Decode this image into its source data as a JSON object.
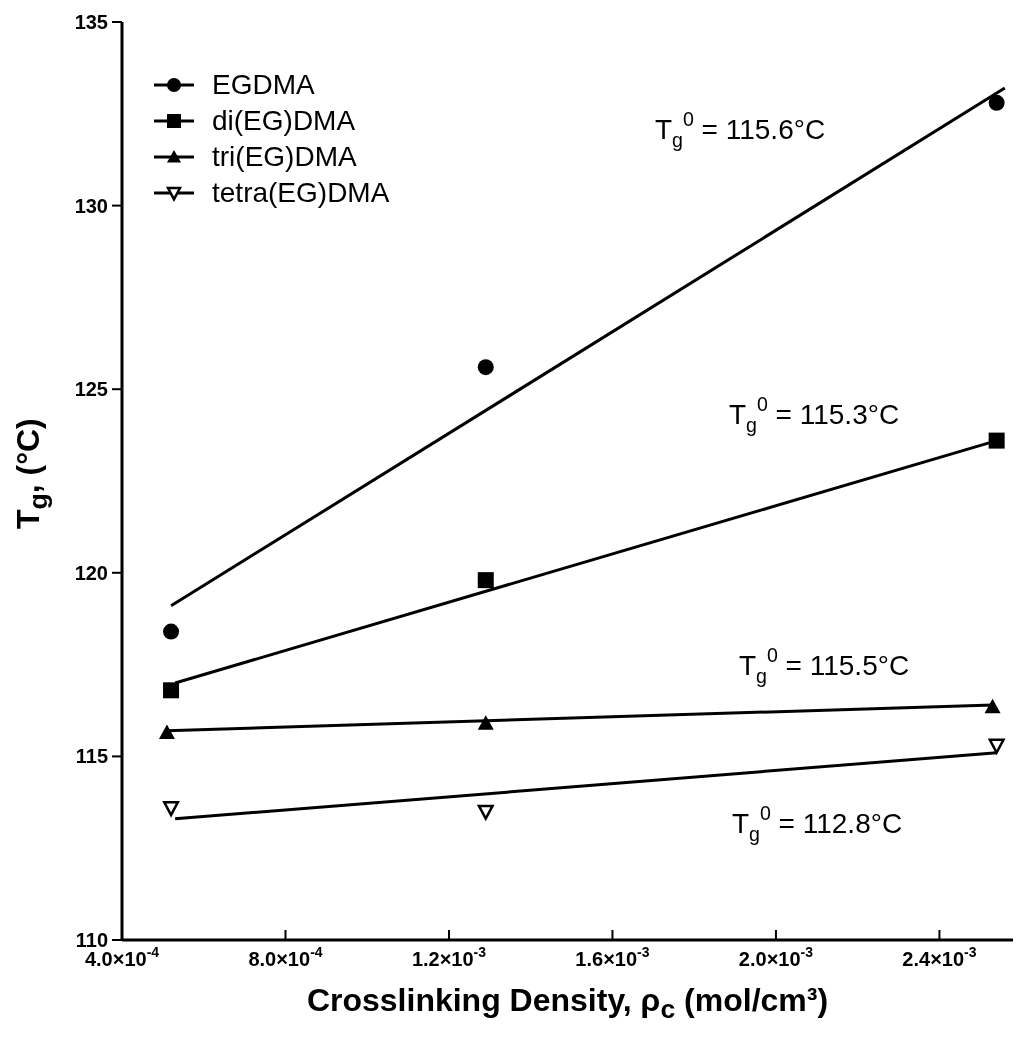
{
  "chart_data": {
    "type": "scatter",
    "xlabel": "Crosslinking Density, ρ$_{c}$ (mol/cm³)",
    "ylabel": "T$_{g}$, (°C)",
    "xlim": [
      0.0004,
      0.00258
    ],
    "ylim": [
      110,
      135
    ],
    "xticks": [
      {
        "value": 0.0004,
        "label": "4.0×10$^{-4}$"
      },
      {
        "value": 0.0008,
        "label": "8.0×10$^{-4}$"
      },
      {
        "value": 0.0012,
        "label": "1.2×10$^{-3}$"
      },
      {
        "value": 0.0016,
        "label": "1.6×10$^{-3}$"
      },
      {
        "value": 0.002,
        "label": "2.0×10$^{-3}$"
      },
      {
        "value": 0.0024,
        "label": "2.4×10$^{-3}$"
      }
    ],
    "yticks": [
      110,
      115,
      120,
      125,
      130,
      135
    ],
    "grid": false,
    "legend": "top left",
    "series": [
      {
        "name": "EGDMA",
        "marker": "circle",
        "color": "#000000",
        "x": [
          0.00052,
          0.00129,
          0.00254
        ],
        "values": [
          118.4,
          125.6,
          132.8
        ]
      },
      {
        "name": "di(EG)DMA",
        "marker": "square",
        "color": "#000000",
        "x": [
          0.00052,
          0.00129,
          0.00254
        ],
        "values": [
          116.8,
          119.8,
          123.6
        ]
      },
      {
        "name": "tri(EG)DMA",
        "marker": "triangle",
        "color": "#000000",
        "x": [
          0.00051,
          0.00129,
          0.00253
        ],
        "values": [
          115.65,
          115.9,
          116.35
        ]
      },
      {
        "name": "tetra(EG)DMA",
        "marker": "triangle_down",
        "color": "#000000",
        "x": [
          0.00052,
          0.00129,
          0.00254
        ],
        "values": [
          113.6,
          113.5,
          115.3
        ]
      },
      {
        "type": "line",
        "marker": "none",
        "color": "#000000",
        "x": [
          0.00052,
          0.00256
        ],
        "values": [
          119.1,
          133.2
        ]
      },
      {
        "type": "line",
        "marker": "none",
        "color": "#000000",
        "x": [
          0.00053,
          0.00254
        ],
        "values": [
          117.0,
          123.6
        ]
      },
      {
        "type": "line",
        "marker": "none",
        "color": "#000000",
        "x": [
          0.00051,
          0.00253
        ],
        "values": [
          115.7,
          116.4
        ]
      },
      {
        "type": "line",
        "marker": "none",
        "color": "#000000",
        "x": [
          0.00053,
          0.00254
        ],
        "values": [
          113.3,
          115.1
        ]
      }
    ],
    "annotations": [
      "T$_{g}$$^{0}$ = 115.6°C",
      "T$_{g}$$^{0}$ = 115.3°C",
      "T$_{g}$$^{0}$ = 115.5°C",
      "T$_{g}$$^{0}$ = 112.8°C"
    ]
  }
}
